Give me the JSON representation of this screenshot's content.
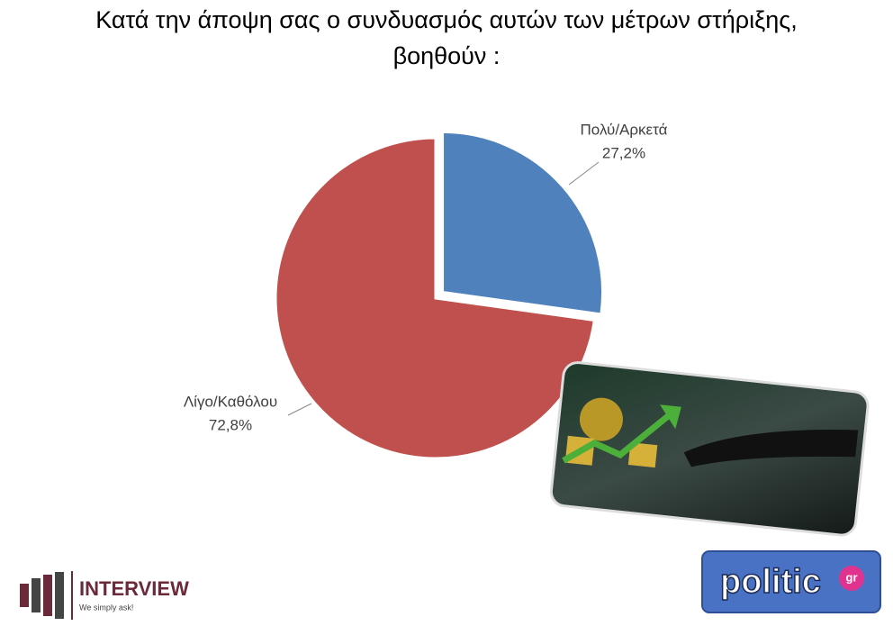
{
  "chart_data": {
    "type": "pie",
    "title": [
      "Κατά την άποψη σας ο συνδυασμός αυτών των μέτρων στήριξης,",
      "βοηθούν :"
    ],
    "categories": [
      "Πολύ/Αρκετά",
      "Λίγο/Καθόλου"
    ],
    "values": [
      27.2,
      72.8
    ],
    "value_labels": [
      "27,2%",
      "72,8%"
    ],
    "colors": [
      "#4f81bd",
      "#c0504d"
    ],
    "exploded": [
      true,
      false
    ]
  },
  "footer": {
    "left_logo": "INTERVIEW",
    "left_tagline": "We simply ask!",
    "right_logo": "politic",
    "right_logo_suffix": "gr"
  }
}
